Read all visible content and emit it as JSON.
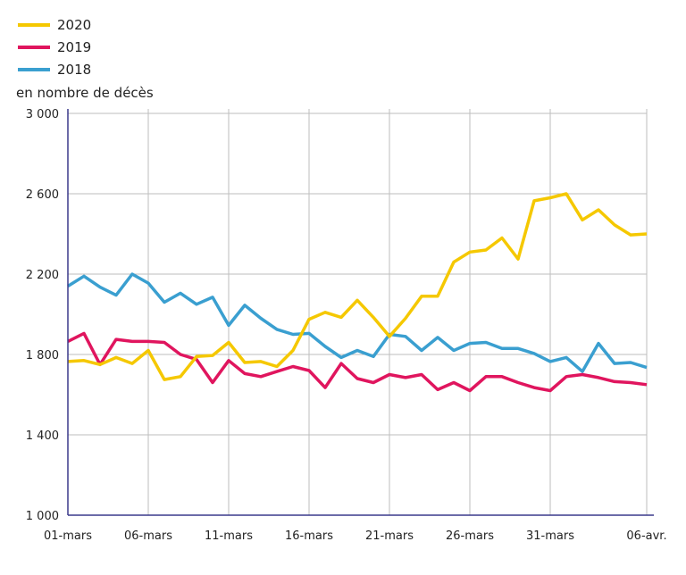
{
  "chart_data": {
    "type": "line",
    "title": "",
    "ylabel": "en nombre de décès",
    "xlabel": "",
    "ylim": [
      1000,
      3000
    ],
    "yticks": [
      1000,
      1400,
      1800,
      2200,
      2600,
      3000
    ],
    "ytick_labels": [
      "1 000",
      "1 400",
      "1 800",
      "2 200",
      "2 600",
      "3 000"
    ],
    "x": [
      "01-mars",
      "02-mars",
      "03-mars",
      "04-mars",
      "05-mars",
      "06-mars",
      "07-mars",
      "08-mars",
      "09-mars",
      "10-mars",
      "11-mars",
      "12-mars",
      "13-mars",
      "14-mars",
      "15-mars",
      "16-mars",
      "17-mars",
      "18-mars",
      "19-mars",
      "20-mars",
      "21-mars",
      "22-mars",
      "23-mars",
      "24-mars",
      "25-mars",
      "26-mars",
      "27-mars",
      "28-mars",
      "29-mars",
      "30-mars",
      "31-mars",
      "01-avr.",
      "02-avr.",
      "03-avr.",
      "04-avr.",
      "05-avr.",
      "06-avr."
    ],
    "xticks": [
      {
        "index": 0,
        "label": "01-mars"
      },
      {
        "index": 5,
        "label": "06-mars"
      },
      {
        "index": 10,
        "label": "11-mars"
      },
      {
        "index": 15,
        "label": "16-mars"
      },
      {
        "index": 20,
        "label": "21-mars"
      },
      {
        "index": 25,
        "label": "26-mars"
      },
      {
        "index": 30,
        "label": "31-mars"
      },
      {
        "index": 36,
        "label": "06-avr."
      }
    ],
    "grid": true,
    "legend_placement": "top-left",
    "series": [
      {
        "name": "2020",
        "color": "#f5c800",
        "values": [
          1765,
          1770,
          1750,
          1785,
          1755,
          1820,
          1675,
          1690,
          1790,
          1795,
          1860,
          1760,
          1765,
          1740,
          1820,
          1975,
          2010,
          1985,
          2070,
          1985,
          1890,
          1980,
          2090,
          2090,
          2260,
          2310,
          2320,
          2380,
          2275,
          2565,
          2580,
          2600,
          2470,
          2520,
          2445,
          2395,
          2400
        ]
      },
      {
        "name": "2019",
        "color": "#e0155e",
        "values": [
          1865,
          1905,
          1750,
          1875,
          1865,
          1865,
          1860,
          1800,
          1775,
          1660,
          1770,
          1705,
          1690,
          1715,
          1740,
          1720,
          1635,
          1755,
          1680,
          1660,
          1700,
          1685,
          1700,
          1625,
          1660,
          1620,
          1690,
          1690,
          1660,
          1635,
          1620,
          1690,
          1700,
          1685,
          1665,
          1660,
          1650
        ]
      },
      {
        "name": "2018",
        "color": "#3a9fd0",
        "values": [
          2140,
          2190,
          2135,
          2095,
          2200,
          2155,
          2060,
          2105,
          2050,
          2085,
          1945,
          2045,
          1980,
          1925,
          1900,
          1905,
          1840,
          1785,
          1820,
          1790,
          1900,
          1890,
          1820,
          1885,
          1820,
          1855,
          1860,
          1830,
          1830,
          1805,
          1765,
          1785,
          1715,
          1855,
          1755,
          1760,
          1735
        ]
      }
    ],
    "axis_color": "#3b3a8c",
    "grid_color": "#bdbdbd"
  }
}
